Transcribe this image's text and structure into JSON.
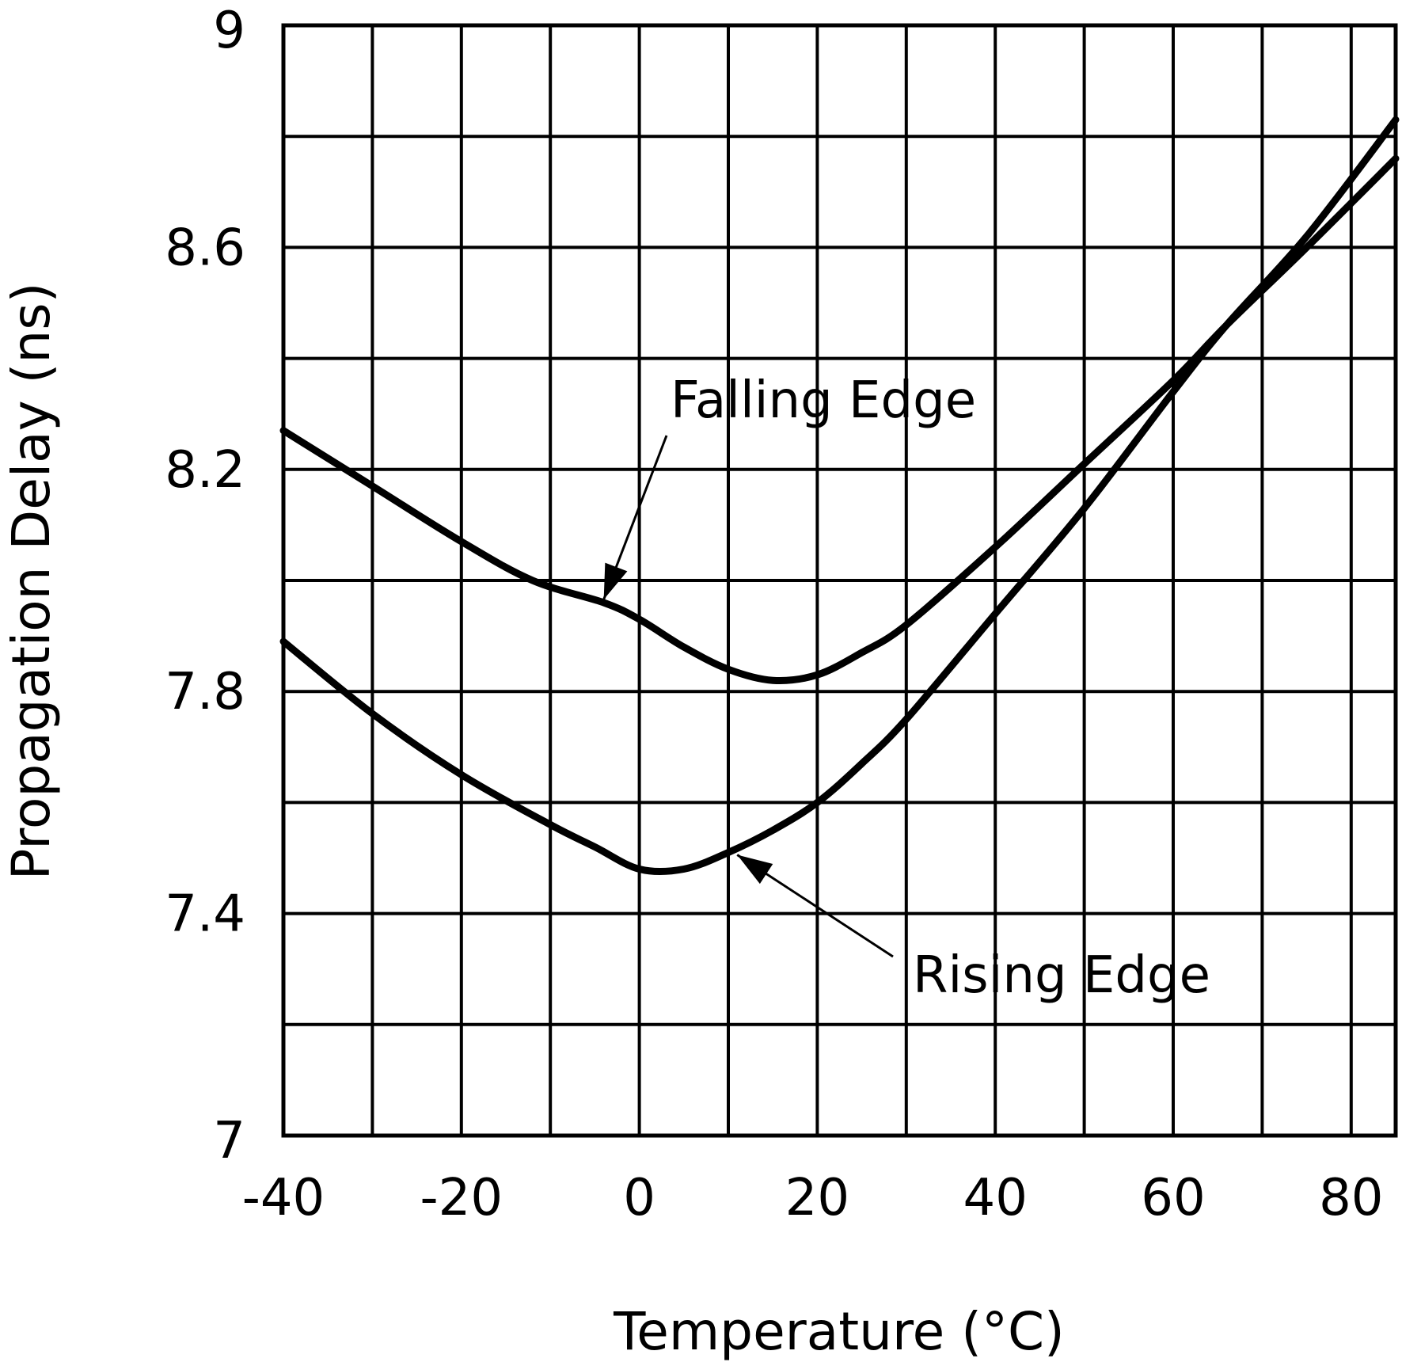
{
  "chart_data": {
    "type": "line",
    "title": "",
    "xlabel": "Temperature (°C)",
    "ylabel": "Propagation Delay (ns)",
    "xlim": [
      -40,
      85
    ],
    "ylim": [
      7,
      9
    ],
    "grid": true,
    "x_ticks": [
      -40,
      -30,
      -20,
      -10,
      0,
      10,
      20,
      30,
      40,
      50,
      60,
      70,
      80
    ],
    "x_tick_labels": [
      {
        "value": -40,
        "label": "-40"
      },
      {
        "value": -20,
        "label": "-20"
      },
      {
        "value": 0,
        "label": "0"
      },
      {
        "value": 20,
        "label": "20"
      },
      {
        "value": 40,
        "label": "40"
      },
      {
        "value": 60,
        "label": "60"
      },
      {
        "value": 80,
        "label": "80"
      }
    ],
    "y_ticks": [
      7,
      7.2,
      7.4,
      7.6,
      7.8,
      8.0,
      8.2,
      8.4,
      8.6,
      8.8,
      9
    ],
    "y_tick_labels": [
      {
        "value": 7,
        "label": "7"
      },
      {
        "value": 7.4,
        "label": "7.4"
      },
      {
        "value": 7.8,
        "label": "7.8"
      },
      {
        "value": 8.2,
        "label": "8.2"
      },
      {
        "value": 8.6,
        "label": "8.6"
      },
      {
        "value": 9,
        "label": "9"
      }
    ],
    "series": [
      {
        "name": "Falling Edge",
        "x": [
          -40,
          -30,
          -20,
          -12,
          -4,
          0,
          5,
          10,
          15,
          20,
          25,
          30,
          40,
          50,
          60,
          66,
          75,
          85
        ],
        "y": [
          8.27,
          8.17,
          8.07,
          8.0,
          7.96,
          7.93,
          7.88,
          7.84,
          7.82,
          7.83,
          7.87,
          7.92,
          8.06,
          8.21,
          8.36,
          8.46,
          8.6,
          8.76
        ]
      },
      {
        "name": "Rising Edge",
        "x": [
          -40,
          -30,
          -20,
          -10,
          -5,
          0,
          5,
          10,
          15,
          20,
          25,
          30,
          40,
          50,
          60,
          66,
          75,
          85
        ],
        "y": [
          7.89,
          7.76,
          7.65,
          7.56,
          7.52,
          7.48,
          7.48,
          7.51,
          7.55,
          7.6,
          7.67,
          7.75,
          7.94,
          8.13,
          8.34,
          8.46,
          8.62,
          8.83
        ]
      }
    ],
    "annotations": [
      {
        "text": "Falling Edge",
        "points_to": {
          "x": -4,
          "y": 7.96
        }
      },
      {
        "text": "Rising Edge",
        "points_to": {
          "x": 11,
          "y": 7.52
        }
      }
    ]
  }
}
